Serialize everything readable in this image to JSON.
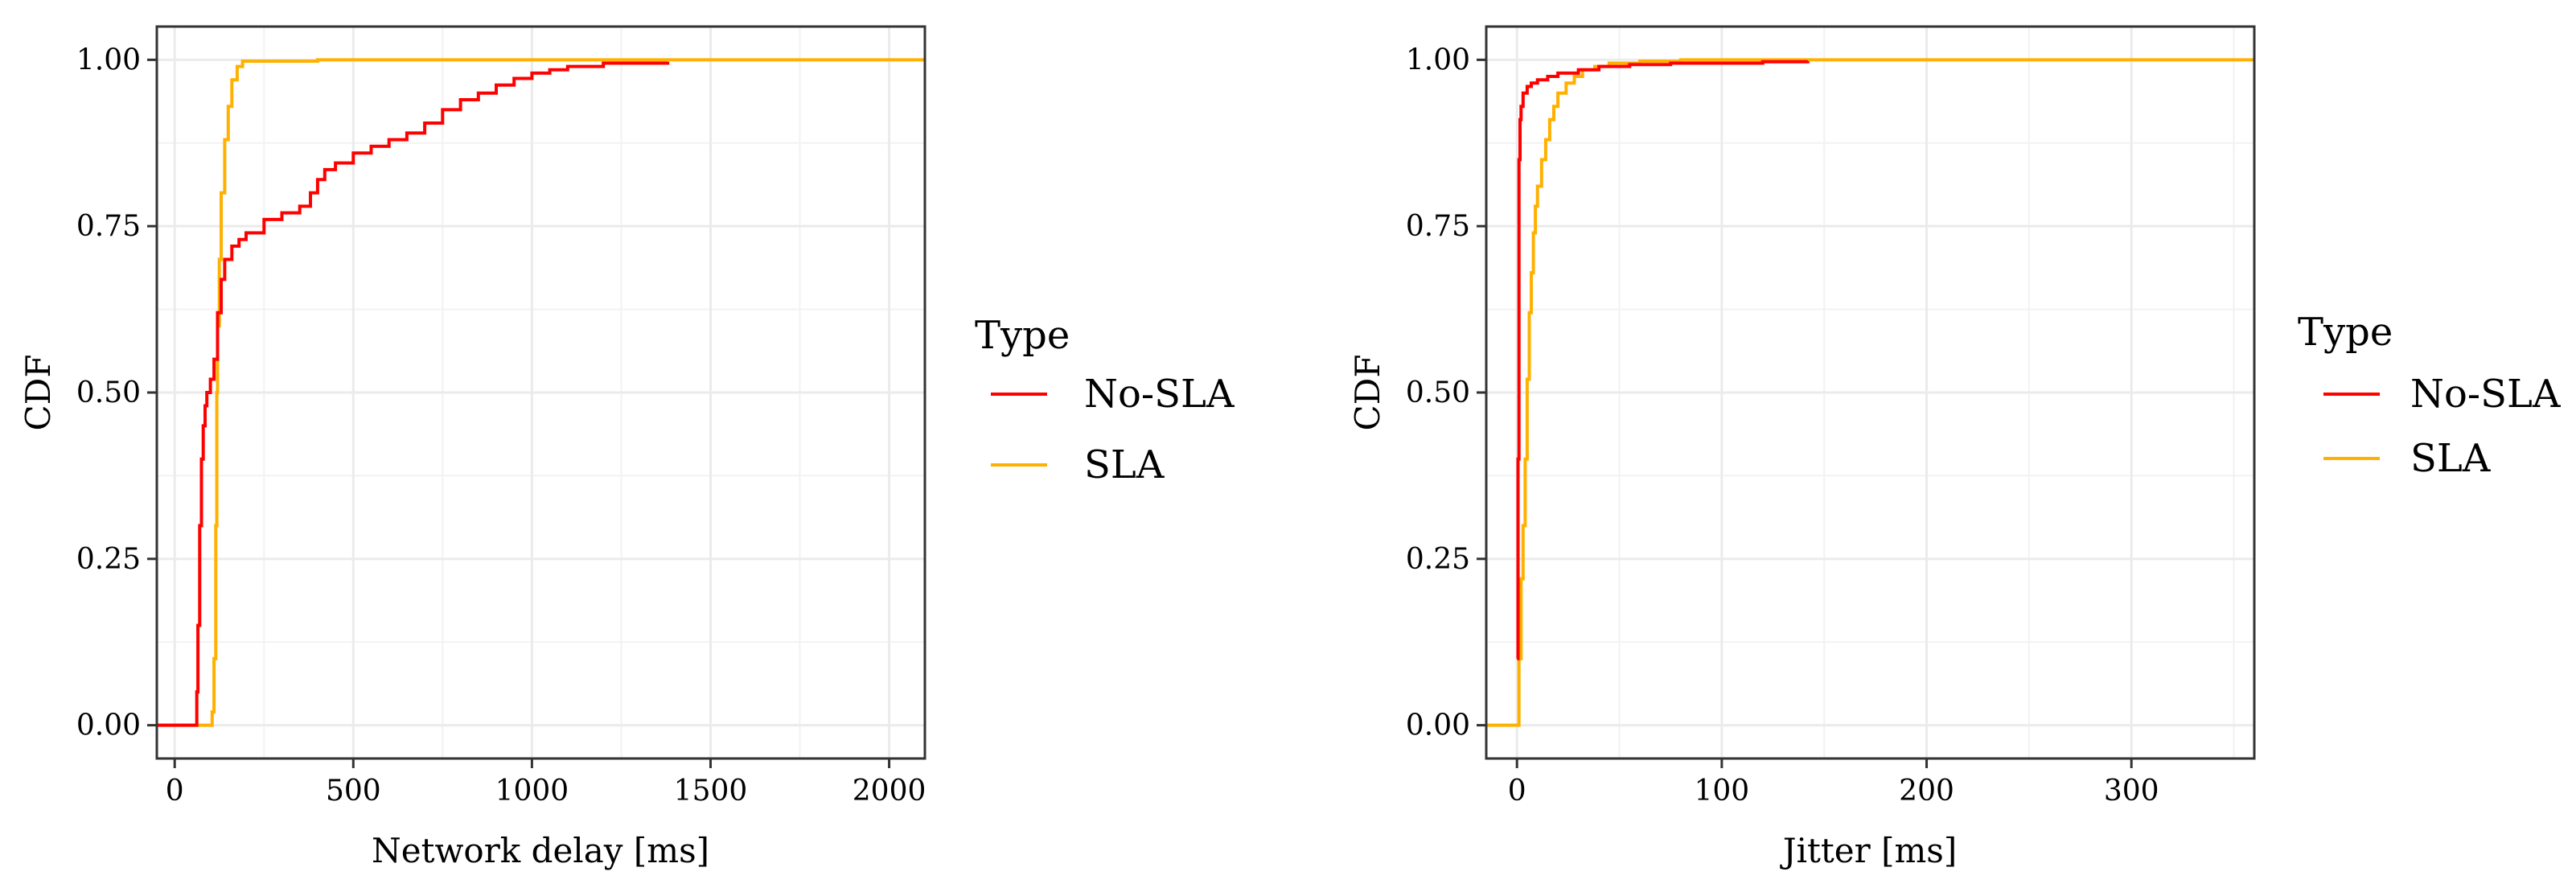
{
  "colors": {
    "no_sla": "#FF0000",
    "sla": "#FFB000"
  },
  "chart_data": [
    {
      "type": "line",
      "subtype": "step-cdf",
      "title": "",
      "xlabel": "Network delay [ms]",
      "ylabel": "CDF",
      "xlim": [
        -50,
        2100
      ],
      "ylim": [
        -0.05,
        1.05
      ],
      "x_ticks": [
        0,
        500,
        1000,
        1500,
        2000
      ],
      "x_tick_labels": [
        "0",
        "500",
        "1000",
        "1500",
        "2000"
      ],
      "y_ticks": [
        0,
        0.25,
        0.5,
        0.75,
        1.0
      ],
      "y_tick_labels": [
        "0.00",
        "0.25",
        "0.50",
        "0.75",
        "1.00"
      ],
      "grid": true,
      "legend": {
        "title": "Type",
        "position": "right",
        "entries": [
          "No-SLA",
          "SLA"
        ]
      },
      "series": [
        {
          "name": "No-SLA",
          "color": "#FF0000",
          "points": [
            [
              -50,
              0
            ],
            [
              60,
              0
            ],
            [
              62,
              0.05
            ],
            [
              65,
              0.15
            ],
            [
              70,
              0.3
            ],
            [
              75,
              0.4
            ],
            [
              80,
              0.45
            ],
            [
              85,
              0.48
            ],
            [
              90,
              0.5
            ],
            [
              100,
              0.52
            ],
            [
              110,
              0.55
            ],
            [
              120,
              0.62
            ],
            [
              130,
              0.67
            ],
            [
              140,
              0.7
            ],
            [
              160,
              0.72
            ],
            [
              180,
              0.73
            ],
            [
              200,
              0.74
            ],
            [
              250,
              0.76
            ],
            [
              300,
              0.77
            ],
            [
              350,
              0.78
            ],
            [
              380,
              0.8
            ],
            [
              400,
              0.82
            ],
            [
              420,
              0.835
            ],
            [
              450,
              0.845
            ],
            [
              500,
              0.86
            ],
            [
              550,
              0.87
            ],
            [
              600,
              0.88
            ],
            [
              650,
              0.89
            ],
            [
              700,
              0.905
            ],
            [
              750,
              0.925
            ],
            [
              800,
              0.94
            ],
            [
              850,
              0.95
            ],
            [
              900,
              0.962
            ],
            [
              950,
              0.972
            ],
            [
              1000,
              0.98
            ],
            [
              1050,
              0.985
            ],
            [
              1100,
              0.99
            ],
            [
              1200,
              0.995
            ],
            [
              1380,
              0.997
            ]
          ]
        },
        {
          "name": "SLA",
          "color": "#FFB000",
          "points": [
            [
              -50,
              0
            ],
            [
              100,
              0
            ],
            [
              105,
              0.02
            ],
            [
              110,
              0.1
            ],
            [
              115,
              0.3
            ],
            [
              118,
              0.5
            ],
            [
              120,
              0.6
            ],
            [
              125,
              0.7
            ],
            [
              130,
              0.8
            ],
            [
              140,
              0.88
            ],
            [
              150,
              0.93
            ],
            [
              160,
              0.97
            ],
            [
              175,
              0.99
            ],
            [
              190,
              0.998
            ],
            [
              400,
              1.0
            ],
            [
              2100,
              1.0
            ]
          ]
        }
      ]
    },
    {
      "type": "line",
      "subtype": "step-cdf",
      "title": "",
      "xlabel": "Jitter [ms]",
      "ylabel": "CDF",
      "xlim": [
        -15,
        360
      ],
      "ylim": [
        -0.05,
        1.05
      ],
      "x_ticks": [
        0,
        100,
        200,
        300
      ],
      "x_tick_labels": [
        "0",
        "100",
        "200",
        "300"
      ],
      "y_ticks": [
        0,
        0.25,
        0.5,
        0.75,
        1.0
      ],
      "y_tick_labels": [
        "0.00",
        "0.25",
        "0.50",
        "0.75",
        "1.00"
      ],
      "grid": true,
      "legend": {
        "title": "Type",
        "position": "right",
        "entries": [
          "No-SLA",
          "SLA"
        ]
      },
      "series": [
        {
          "name": "No-SLA",
          "color": "#FF0000",
          "points": [
            [
              0,
              0.1
            ],
            [
              0.5,
              0.4
            ],
            [
              1,
              0.85
            ],
            [
              1.5,
              0.91
            ],
            [
              2,
              0.93
            ],
            [
              3,
              0.95
            ],
            [
              5,
              0.96
            ],
            [
              7,
              0.965
            ],
            [
              10,
              0.97
            ],
            [
              15,
              0.975
            ],
            [
              20,
              0.98
            ],
            [
              30,
              0.985
            ],
            [
              40,
              0.99
            ],
            [
              55,
              0.993
            ],
            [
              75,
              0.995
            ],
            [
              120,
              0.997
            ],
            [
              142,
              0.998
            ]
          ]
        },
        {
          "name": "SLA",
          "color": "#FFB000",
          "points": [
            [
              -15,
              0
            ],
            [
              0,
              0
            ],
            [
              1,
              0.1
            ],
            [
              2,
              0.22
            ],
            [
              3,
              0.3
            ],
            [
              4,
              0.4
            ],
            [
              5,
              0.52
            ],
            [
              6,
              0.62
            ],
            [
              7,
              0.68
            ],
            [
              8,
              0.74
            ],
            [
              9,
              0.78
            ],
            [
              10,
              0.81
            ],
            [
              12,
              0.85
            ],
            [
              14,
              0.88
            ],
            [
              16,
              0.91
            ],
            [
              18,
              0.93
            ],
            [
              20,
              0.95
            ],
            [
              24,
              0.965
            ],
            [
              28,
              0.975
            ],
            [
              32,
              0.985
            ],
            [
              38,
              0.99
            ],
            [
              45,
              0.995
            ],
            [
              60,
              0.998
            ],
            [
              80,
              1.0
            ],
            [
              360,
              1.0
            ]
          ]
        }
      ]
    }
  ]
}
